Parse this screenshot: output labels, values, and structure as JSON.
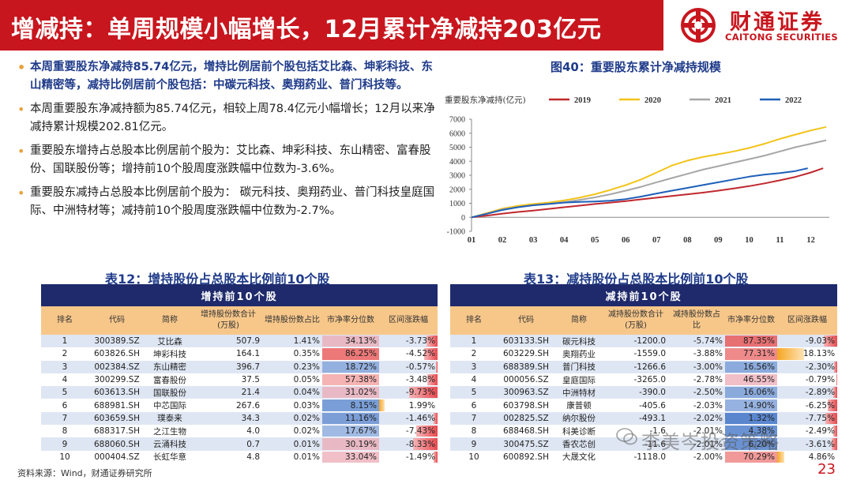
{
  "header": {
    "title": "增减持：单周规模小幅增长，12月累计净减持203亿元",
    "brand_cn": "财通证券",
    "brand_en": "CAITONG SECURITIES",
    "brand_color": "#c8161e"
  },
  "bullets": [
    "本周重要股东净减持85.74亿元，增持比例居前个股包括艾比森、坤彩科技、东山精密等，减持比例居前个股包括：中碳元科技、奥翔药业、普门科技等。",
    "本周重要股东净减持额为85.74亿元，相较上周78.4亿元小幅增长；12月以来净减持累计规模202.81亿元。",
    "重要股东增持占总股本比例居前个股为：艾比森、坤彩科技、东山精密、富春股份、国联股份等；增持前10个股周度涨跌幅中位数为-3.6%。",
    "重要股东减持占总股本比例居前个股为： 碳元科技、奥翔药业、普门科技皇庭国际、中洲特材等；减持前10个股周度涨跌幅中位数为-2.7%。"
  ],
  "chart_data": {
    "type": "line",
    "title": "图40：重要股东累计净减持规模",
    "ylabel": "重要股东净减持(亿元)",
    "ylim": [
      -1000,
      7000
    ],
    "yticks": [
      "7000",
      "6000",
      "5000",
      "4000",
      "3000",
      "2000",
      "1000",
      "0",
      "-1000"
    ],
    "xticks": [
      "01",
      "02",
      "03",
      "04",
      "05",
      "06",
      "07",
      "08",
      "09",
      "10",
      "11",
      "12"
    ],
    "series": [
      {
        "name": "2019",
        "color": "#c0282d",
        "x": [
          1,
          1.5,
          2,
          2.5,
          3,
          3.5,
          4,
          4.5,
          5,
          5.5,
          6,
          6.5,
          7,
          7.5,
          8,
          8.5,
          9,
          9.5,
          10,
          10.5,
          11,
          11.5,
          12,
          12.4
        ],
        "values": [
          0,
          120,
          260,
          380,
          480,
          600,
          720,
          830,
          950,
          1050,
          1160,
          1280,
          1400,
          1520,
          1640,
          1760,
          1900,
          2060,
          2220,
          2420,
          2640,
          2880,
          3200,
          3500
        ]
      },
      {
        "name": "2020",
        "color": "#f2c318",
        "x": [
          1,
          1.5,
          2,
          2.5,
          3,
          3.5,
          4,
          4.5,
          5,
          5.5,
          6,
          6.5,
          7,
          7.5,
          8,
          8.5,
          9,
          9.5,
          10,
          10.5,
          11,
          11.5,
          12,
          12.5
        ],
        "values": [
          0,
          300,
          620,
          820,
          950,
          1050,
          1200,
          1400,
          1650,
          1950,
          2300,
          2700,
          3200,
          3700,
          4050,
          4300,
          4500,
          4700,
          4950,
          5250,
          5600,
          5900,
          6200,
          6450
        ]
      },
      {
        "name": "2021",
        "color": "#a6a6a6",
        "x": [
          1,
          1.5,
          2,
          2.5,
          3,
          3.5,
          4,
          4.5,
          5,
          5.5,
          6,
          6.5,
          7,
          7.5,
          8,
          8.5,
          9,
          9.5,
          10,
          10.5,
          11,
          11.5,
          12,
          12.5
        ],
        "values": [
          0,
          260,
          560,
          720,
          860,
          960,
          1080,
          1240,
          1420,
          1640,
          1900,
          2180,
          2500,
          2800,
          3100,
          3400,
          3650,
          3900,
          4150,
          4400,
          4700,
          5000,
          5250,
          5500
        ]
      },
      {
        "name": "2022",
        "color": "#1e5fb8",
        "x": [
          1,
          1.5,
          2,
          2.5,
          3,
          3.5,
          4,
          4.5,
          5,
          5.5,
          6,
          6.5,
          7,
          7.5,
          8,
          8.5,
          9,
          9.5,
          10,
          10.5,
          11,
          11.5,
          11.9
        ],
        "values": [
          0,
          250,
          520,
          720,
          860,
          950,
          1050,
          1100,
          1130,
          1180,
          1300,
          1480,
          1700,
          1900,
          2100,
          2300,
          2500,
          2700,
          2900,
          3050,
          3150,
          3300,
          3500
        ]
      }
    ]
  },
  "table_inc": {
    "caption": "表12：增持股份占总股本比例前10个股",
    "banner": "增持前10个股",
    "headers": [
      "排名",
      "代码",
      "简称",
      "增持股份数合计(万股)",
      "增持股份数占比",
      "市净率分位数",
      "区间涨跌幅"
    ],
    "rows": [
      {
        "rank": "1",
        "code": "300389.SZ",
        "name": "艾比森",
        "shares": "507.9",
        "ratio": "1.41%",
        "pb": "34.13%",
        "pb_v": 34.13,
        "chg": "-3.73%",
        "chg_v": -3.73
      },
      {
        "rank": "2",
        "code": "603826.SH",
        "name": "坤彩科技",
        "shares": "164.1",
        "ratio": "0.35%",
        "pb": "86.25%",
        "pb_v": 86.25,
        "chg": "-4.52%",
        "chg_v": -4.52
      },
      {
        "rank": "3",
        "code": "002384.SZ",
        "name": "东山精密",
        "shares": "396.7",
        "ratio": "0.23%",
        "pb": "18.72%",
        "pb_v": 18.72,
        "chg": "-0.57%",
        "chg_v": -0.57
      },
      {
        "rank": "4",
        "code": "300299.SZ",
        "name": "富春股份",
        "shares": "37.5",
        "ratio": "0.05%",
        "pb": "57.38%",
        "pb_v": 57.38,
        "chg": "-3.48%",
        "chg_v": -3.48
      },
      {
        "rank": "5",
        "code": "603613.SH",
        "name": "国联股份",
        "shares": "21.4",
        "ratio": "0.04%",
        "pb": "31.02%",
        "pb_v": 31.02,
        "chg": "-9.73%",
        "chg_v": -9.73
      },
      {
        "rank": "6",
        "code": "688981.SH",
        "name": "中芯国际",
        "shares": "267.6",
        "ratio": "0.03%",
        "pb": "8.15%",
        "pb_v": 8.15,
        "chg": "1.99%",
        "chg_v": 1.99
      },
      {
        "rank": "7",
        "code": "603659.SH",
        "name": "璞泰来",
        "shares": "34.3",
        "ratio": "0.02%",
        "pb": "11.16%",
        "pb_v": 11.16,
        "chg": "-1.46%",
        "chg_v": -1.46
      },
      {
        "rank": "8",
        "code": "688317.SH",
        "name": "之江生物",
        "shares": "4.0",
        "ratio": "0.02%",
        "pb": "17.67%",
        "pb_v": 17.67,
        "chg": "-7.43%",
        "chg_v": -7.43
      },
      {
        "rank": "9",
        "code": "688060.SH",
        "name": "云涌科技",
        "shares": "0.7",
        "ratio": "0.01%",
        "pb": "30.19%",
        "pb_v": 30.19,
        "chg": "-8.33%",
        "chg_v": -8.33
      },
      {
        "rank": "10",
        "code": "000404.SZ",
        "name": "长虹华意",
        "shares": "4.8",
        "ratio": "0.01%",
        "pb": "33.04%",
        "pb_v": 33.04,
        "chg": "-1.49%",
        "chg_v": -1.49
      }
    ]
  },
  "table_dec": {
    "caption": "表13：减持股份占总股本比例前10个股",
    "banner": "减持前10个股",
    "headers": [
      "排名",
      "代码",
      "简称",
      "减持股份数合计(万股)",
      "减持股份数占比",
      "市净率分位数",
      "区间涨跌幅"
    ],
    "rows": [
      {
        "rank": "1",
        "code": "603133.SH",
        "name": "碳元科技",
        "shares": "-1200.0",
        "ratio": "-5.74%",
        "pb": "87.35%",
        "pb_v": 87.35,
        "chg": "-9.03%",
        "chg_v": -9.03
      },
      {
        "rank": "2",
        "code": "603229.SH",
        "name": "奥翔药业",
        "shares": "-1559.0",
        "ratio": "-3.88%",
        "pb": "77.31%",
        "pb_v": 77.31,
        "chg": "18.13%",
        "chg_v": 18.13
      },
      {
        "rank": "3",
        "code": "688389.SH",
        "name": "普门科技",
        "shares": "-1266.6",
        "ratio": "-3.00%",
        "pb": "16.56%",
        "pb_v": 16.56,
        "chg": "-2.30%",
        "chg_v": -2.3
      },
      {
        "rank": "4",
        "code": "000056.SZ",
        "name": "皇庭国际",
        "shares": "-3265.0",
        "ratio": "-2.78%",
        "pb": "46.55%",
        "pb_v": 46.55,
        "chg": "-0.79%",
        "chg_v": -0.79
      },
      {
        "rank": "5",
        "code": "300963.SZ",
        "name": "中洲特材",
        "shares": "-390.0",
        "ratio": "-2.50%",
        "pb": "16.06%",
        "pb_v": 16.06,
        "chg": "-2.89%",
        "chg_v": -2.89
      },
      {
        "rank": "6",
        "code": "603798.SH",
        "name": "康普顿",
        "shares": "-405.6",
        "ratio": "-2.03%",
        "pb": "14.90%",
        "pb_v": 14.9,
        "chg": "-6.25%",
        "chg_v": -6.25
      },
      {
        "rank": "7",
        "code": "002825.SZ",
        "name": "纳尔股份",
        "shares": "-493.1",
        "ratio": "-2.02%",
        "pb": "1.32%",
        "pb_v": 1.32,
        "chg": "-7.75%",
        "chg_v": -7.75
      },
      {
        "rank": "8",
        "code": "688468.SH",
        "name": "科美诊断",
        "shares": "-1.6",
        "ratio": "-2.01%",
        "pb": "4.38%",
        "pb_v": 4.38,
        "chg": "-2.49%",
        "chg_v": -2.49
      },
      {
        "rank": "9",
        "code": "300475.SZ",
        "name": "香农芯创",
        "shares": "-11.6",
        "ratio": "-2.01%",
        "pb": "6.20%",
        "pb_v": 6.2,
        "chg": "-3.61%",
        "chg_v": -3.61
      },
      {
        "rank": "10",
        "code": "600892.SH",
        "name": "大晟文化",
        "shares": "-1118.0",
        "ratio": "-2.00%",
        "pb": "70.29%",
        "pb_v": 70.29,
        "chg": "4.86%",
        "chg_v": 4.86
      }
    ]
  },
  "footer": {
    "source": "资料来源：Wind，财通证券研究所",
    "page": "23",
    "watermark": "李美岑投资策略"
  }
}
